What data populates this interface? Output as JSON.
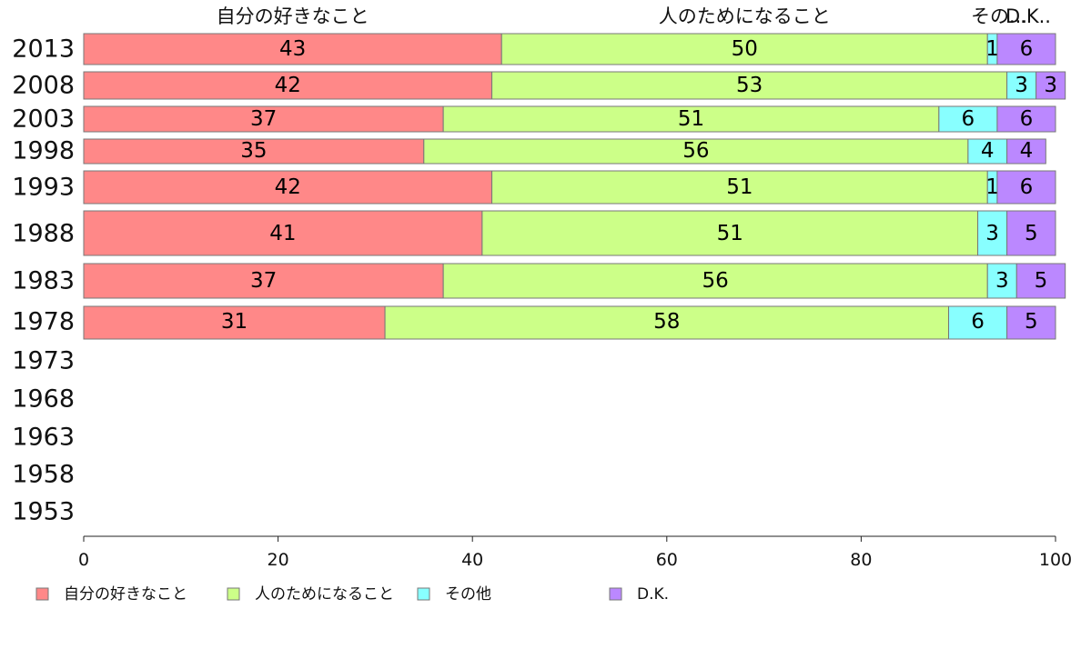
{
  "chart_data": {
    "type": "bar",
    "orientation": "horizontal",
    "stacked": true,
    "categories": [
      "2013",
      "2008",
      "2003",
      "1998",
      "1993",
      "1988",
      "1983",
      "1978",
      "1973",
      "1968",
      "1963",
      "1958",
      "1953"
    ],
    "series": [
      {
        "name": "自分の好きなこと",
        "color": "#ff8888",
        "top_label": "自分の好きなこと",
        "values": [
          43,
          42,
          37,
          35,
          42,
          41,
          37,
          31,
          null,
          null,
          null,
          null,
          null
        ]
      },
      {
        "name": "人のためになること",
        "color": "#ccff88",
        "top_label": "人のためになること",
        "values": [
          50,
          53,
          51,
          56,
          51,
          51,
          56,
          58,
          null,
          null,
          null,
          null,
          null
        ]
      },
      {
        "name": "その他",
        "color": "#88ffff",
        "top_label": "その...",
        "values": [
          1,
          3,
          6,
          4,
          1,
          3,
          3,
          6,
          null,
          null,
          null,
          null,
          null
        ]
      },
      {
        "name": "D.K.",
        "color": "#bb88ff",
        "top_label": "D.K..",
        "values": [
          6,
          3,
          6,
          4,
          6,
          5,
          5,
          5,
          null,
          null,
          null,
          null,
          null
        ]
      }
    ],
    "xlim": [
      0,
      100
    ],
    "xticks": [
      "0",
      "20",
      "40",
      "60",
      "80",
      "100"
    ],
    "grid": false,
    "legend_position": "bottom"
  }
}
